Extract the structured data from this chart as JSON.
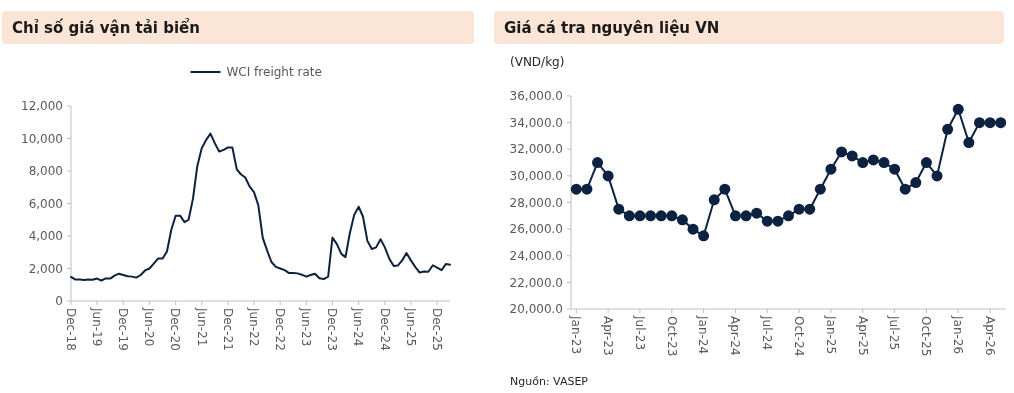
{
  "chart_data": [
    {
      "type": "line",
      "title": "Chỉ số giá vận tải biển",
      "legend": "top",
      "x": [
        "2018-12",
        "2019-01",
        "2019-02",
        "2019-03",
        "2019-04",
        "2019-05",
        "2019-06",
        "2019-07",
        "2019-08",
        "2019-09",
        "2019-10",
        "2019-11",
        "2019-12",
        "2020-01",
        "2020-02",
        "2020-03",
        "2020-04",
        "2020-05",
        "2020-06",
        "2020-07",
        "2020-08",
        "2020-09",
        "2020-10",
        "2020-11",
        "2020-12",
        "2021-01",
        "2021-02",
        "2021-03",
        "2021-04",
        "2021-05",
        "2021-06",
        "2021-07",
        "2021-08",
        "2021-09",
        "2021-10",
        "2021-11",
        "2021-12",
        "2022-01",
        "2022-02",
        "2022-03",
        "2022-04",
        "2022-05",
        "2022-06",
        "2022-07",
        "2022-08",
        "2022-09",
        "2022-10",
        "2022-11",
        "2022-12",
        "2023-01",
        "2023-02",
        "2023-03",
        "2023-04",
        "2023-05",
        "2023-06",
        "2023-07",
        "2023-08",
        "2023-09",
        "2023-10",
        "2023-11",
        "2023-12",
        "2024-01",
        "2024-02",
        "2024-03",
        "2024-04",
        "2024-05",
        "2024-06",
        "2024-07",
        "2024-08",
        "2024-09",
        "2024-10",
        "2024-11",
        "2024-12",
        "2025-01",
        "2025-02",
        "2025-03",
        "2025-04",
        "2025-05",
        "2025-06",
        "2025-07",
        "2025-08",
        "2025-09",
        "2025-10",
        "2025-11",
        "2025-12",
        "2026-01",
        "2026-02",
        "2026-03"
      ],
      "series": [
        {
          "name": "WCI freight rate",
          "color": "#0d2240",
          "values": [
            1480,
            1320,
            1330,
            1290,
            1320,
            1310,
            1380,
            1260,
            1390,
            1380,
            1560,
            1680,
            1600,
            1520,
            1500,
            1440,
            1600,
            1880,
            2000,
            2300,
            2620,
            2620,
            3050,
            4400,
            5250,
            5250,
            4850,
            5000,
            6300,
            8300,
            9400,
            9900,
            10300,
            9700,
            9200,
            9300,
            9450,
            9450,
            8100,
            7800,
            7600,
            7050,
            6700,
            5900,
            3900,
            3100,
            2400,
            2100,
            2000,
            1900,
            1720,
            1720,
            1700,
            1620,
            1500,
            1600,
            1680,
            1400,
            1350,
            1500,
            3900,
            3500,
            2900,
            2700,
            4200,
            5300,
            5800,
            5200,
            3700,
            3200,
            3300,
            3800,
            3300,
            2600,
            2150,
            2180,
            2500,
            2950,
            2500,
            2100,
            1750,
            1820,
            1800,
            2200,
            2050,
            1900,
            2280,
            2230
          ]
        }
      ],
      "xlim": [
        "2018-12",
        "2026-03"
      ],
      "xticks": [
        {
          "value": "2018-12",
          "label": "Dec-18"
        },
        {
          "value": "2019-06",
          "label": "Jun-19"
        },
        {
          "value": "2019-12",
          "label": "Dec-19"
        },
        {
          "value": "2020-06",
          "label": "Jun-20"
        },
        {
          "value": "2020-12",
          "label": "Dec-20"
        },
        {
          "value": "2021-06",
          "label": "Jun-21"
        },
        {
          "value": "2021-12",
          "label": "Dec-21"
        },
        {
          "value": "2022-06",
          "label": "Jun-22"
        },
        {
          "value": "2022-12",
          "label": "Dec-22"
        },
        {
          "value": "2023-06",
          "label": "Jun-23"
        },
        {
          "value": "2023-12",
          "label": "Dec-23"
        },
        {
          "value": "2024-06",
          "label": "Jun-24"
        },
        {
          "value": "2024-12",
          "label": "Dec-24"
        },
        {
          "value": "2025-06",
          "label": "Jun-25"
        },
        {
          "value": "2025-12",
          "label": "Dec-25"
        }
      ],
      "ylim": [
        0,
        12000
      ],
      "yticks": [
        0,
        {
          "value": 2000,
          "label": "2,000"
        },
        {
          "value": 4000,
          "label": "4,000"
        },
        {
          "value": 6000,
          "label": "6,000"
        },
        {
          "value": 8000,
          "label": "8,000"
        },
        {
          "value": 10000,
          "label": "10,000"
        },
        {
          "value": 12000,
          "label": "12,000"
        }
      ]
    },
    {
      "type": "line",
      "title": "Giá cá tra nguyên liệu VN",
      "ylabel": "(VND/kg)",
      "marker": "circle",
      "annotations": [
        "Nguồn: VASEP"
      ],
      "categories": [
        "Jan-23",
        null,
        null,
        "Apr-23",
        null,
        null,
        "Jul-23",
        null,
        null,
        "Oct-23",
        null,
        null,
        "Jan-24",
        null,
        null,
        "Apr-24",
        null,
        null,
        "Jul-24",
        null,
        null,
        "Oct-24",
        null,
        null,
        "Jan-25",
        null,
        null,
        "Apr-25",
        null,
        null,
        "Jul-25",
        null,
        null,
        "Oct-25",
        null,
        null,
        "Jan-26",
        null,
        null,
        "Apr-26",
        null
      ],
      "series": [
        {
          "color": "#0d2240",
          "values": [
            29000,
            29000,
            31000,
            30000,
            27500,
            27000,
            27000,
            27000,
            27000,
            27000,
            26700,
            26000,
            25500,
            28200,
            29000,
            27000,
            27000,
            27200,
            26600,
            26600,
            27000,
            27500,
            27500,
            29000,
            30500,
            31800,
            31500,
            31000,
            31200,
            31000,
            30500,
            29000,
            29500,
            31000,
            30000,
            33500,
            35000,
            32500,
            34000,
            34000,
            34000
          ]
        }
      ],
      "ylim": [
        20000,
        36000
      ],
      "yticks": [
        {
          "value": 20000,
          "label": "20,000.0"
        },
        {
          "value": 22000,
          "label": "22,000.0"
        },
        {
          "value": 24000,
          "label": "24,000.0"
        },
        {
          "value": 26000,
          "label": "26,000.0"
        },
        {
          "value": 28000,
          "label": "28,000.0"
        },
        {
          "value": 30000,
          "label": "30,000.0"
        },
        {
          "value": 32000,
          "label": "32,000.0"
        },
        {
          "value": 34000,
          "label": "34,000.0"
        },
        {
          "value": 36000,
          "label": "36,000.0"
        }
      ]
    }
  ]
}
